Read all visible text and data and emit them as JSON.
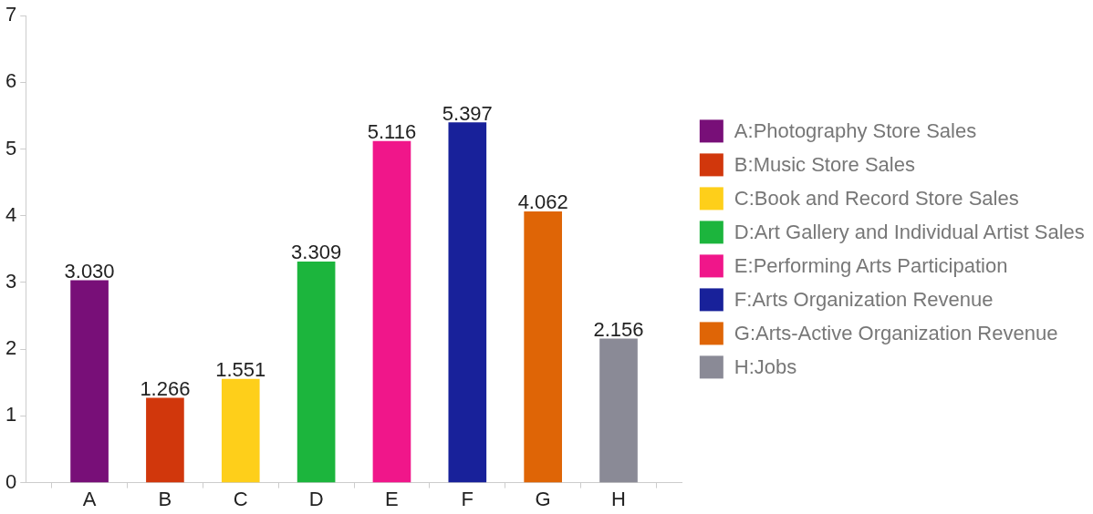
{
  "chart_data": {
    "type": "bar",
    "categories": [
      "A",
      "B",
      "C",
      "D",
      "E",
      "F",
      "G",
      "H"
    ],
    "series": [
      {
        "name": "A:Photography Store Sales",
        "color": "#780f78",
        "values": [
          3.03,
          null,
          null,
          null,
          null,
          null,
          null,
          null
        ],
        "value_labels": [
          "3.030",
          null,
          null,
          null,
          null,
          null,
          null,
          null
        ]
      },
      {
        "name": "B:Music Store Sales",
        "color": "#d1370c",
        "values": [
          null,
          1.266,
          null,
          null,
          null,
          null,
          null,
          null
        ],
        "value_labels": [
          null,
          "1.266",
          null,
          null,
          null,
          null,
          null,
          null
        ]
      },
      {
        "name": "C:Book and Record Store Sales",
        "color": "#fecf1a",
        "values": [
          null,
          null,
          1.551,
          null,
          null,
          null,
          null,
          null
        ],
        "value_labels": [
          null,
          null,
          "1.551",
          null,
          null,
          null,
          null,
          null
        ]
      },
      {
        "name": "D:Art Gallery and Individual Artist Sales",
        "color": "#1cb53d",
        "values": [
          null,
          null,
          null,
          3.309,
          null,
          null,
          null,
          null
        ],
        "value_labels": [
          null,
          null,
          null,
          "3.309",
          null,
          null,
          null,
          null
        ]
      },
      {
        "name": "E:Performing Arts Participation",
        "color": "#f0168a",
        "values": [
          null,
          null,
          null,
          null,
          5.116,
          null,
          null,
          null
        ],
        "value_labels": [
          null,
          null,
          null,
          null,
          "5.116",
          null,
          null,
          null
        ]
      },
      {
        "name": "F:Arts Organization Revenue",
        "color": "#18219a",
        "values": [
          null,
          null,
          null,
          null,
          null,
          5.397,
          null,
          null
        ],
        "value_labels": [
          null,
          null,
          null,
          null,
          null,
          "5.397",
          null,
          null
        ]
      },
      {
        "name": "G:Arts-Active Organization Revenue",
        "color": "#df6506",
        "values": [
          null,
          null,
          null,
          null,
          null,
          null,
          4.062,
          null
        ],
        "value_labels": [
          null,
          null,
          null,
          null,
          null,
          null,
          "4.062",
          null
        ]
      },
      {
        "name": "H:Jobs",
        "color": "#8a8a96",
        "values": [
          null,
          null,
          null,
          null,
          null,
          null,
          null,
          2.156
        ],
        "value_labels": [
          null,
          null,
          null,
          null,
          null,
          null,
          null,
          "2.156"
        ]
      }
    ],
    "ylim": [
      0,
      7
    ],
    "yticks": [
      0,
      1,
      2,
      3,
      4,
      5,
      6,
      7
    ],
    "grid": false,
    "legend": "right"
  }
}
